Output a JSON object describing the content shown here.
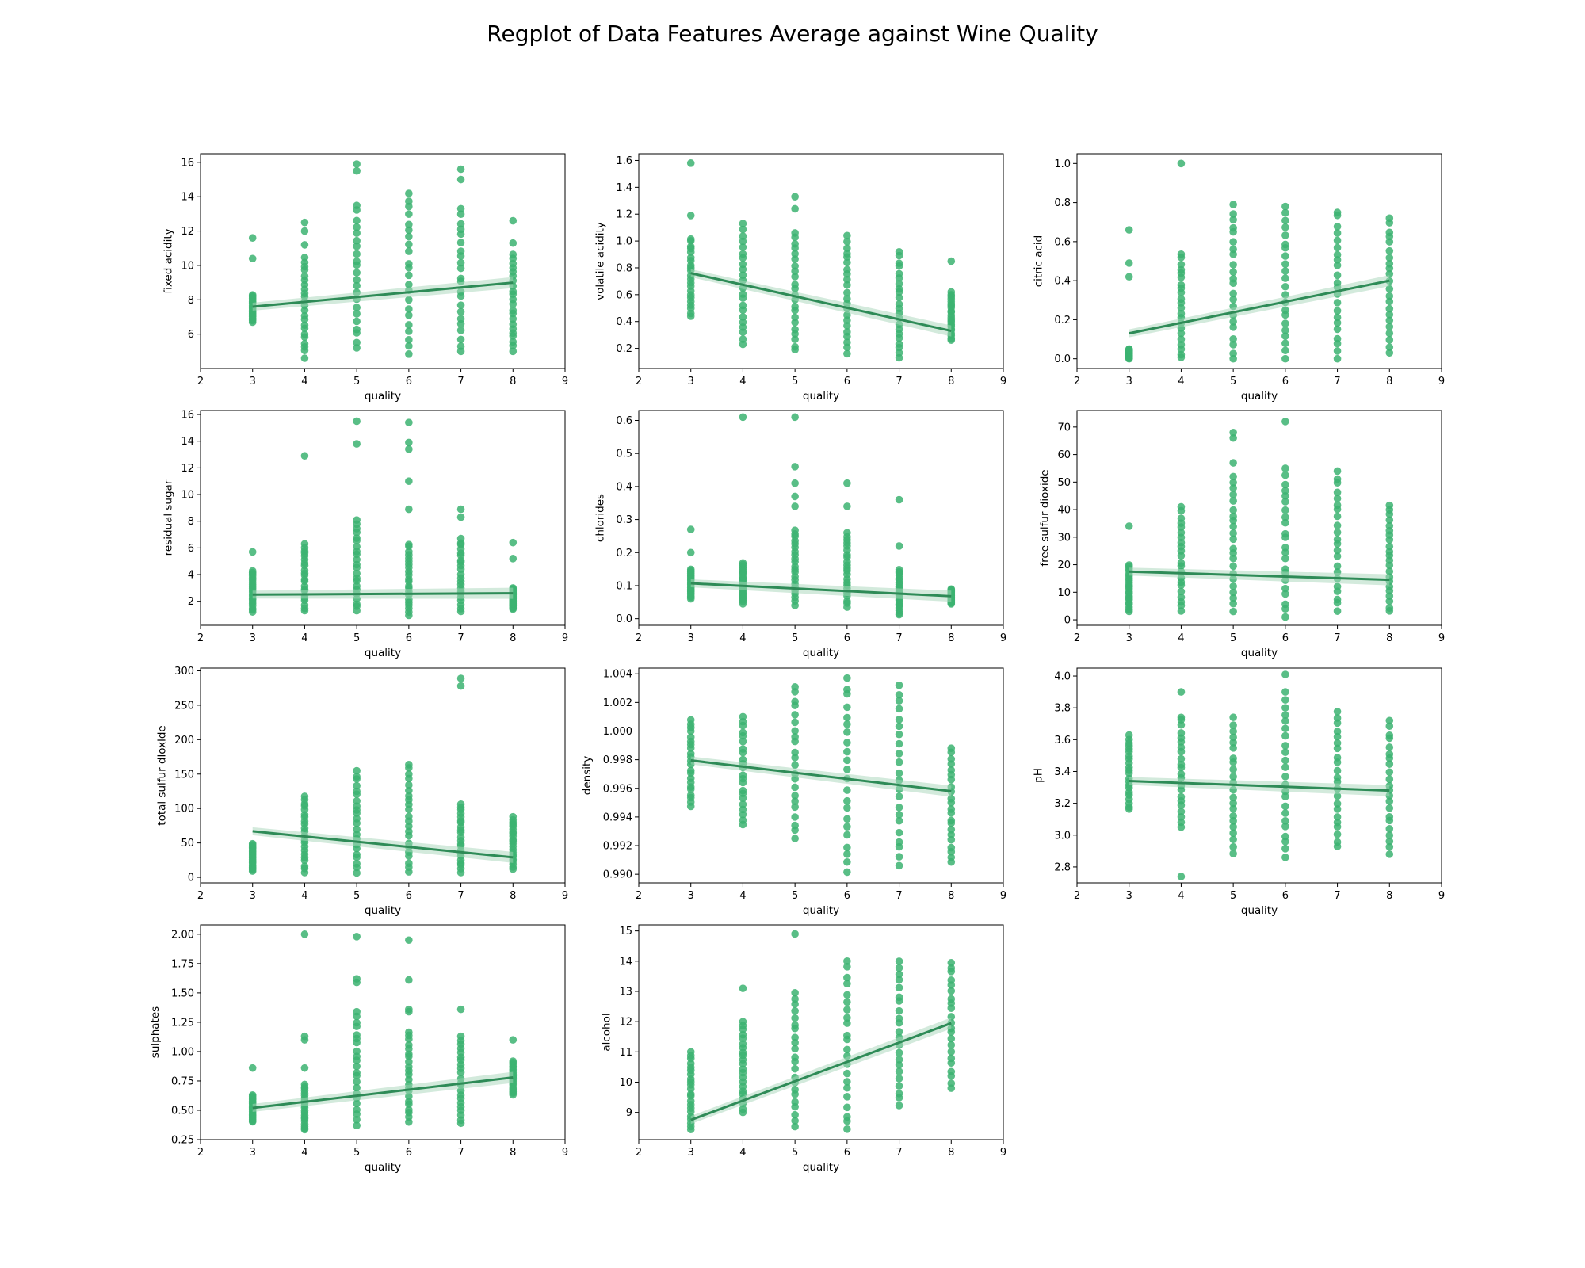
{
  "title": "Regplot of Data Features Average against Wine Quality",
  "colors": {
    "points": "#3cb371",
    "line": "#2e8b57",
    "ci": "#a8d5b9"
  },
  "chart_data": [
    {
      "type": "scatter",
      "xlabel": "quality",
      "ylabel": "fixed acidity",
      "xlim": [
        2,
        9
      ],
      "ylim": [
        4.0,
        16.5
      ],
      "xticks": [
        2,
        3,
        4,
        5,
        6,
        7,
        8,
        9
      ],
      "yticks": [
        6,
        8,
        10,
        12,
        14,
        16
      ],
      "ytick_labels": [
        "6",
        "8",
        "10",
        "12",
        "14",
        "16"
      ],
      "regression": {
        "x": [
          3,
          8
        ],
        "y": [
          7.6,
          9.0
        ]
      },
      "groups": [
        {
          "x": 3,
          "min": 6.7,
          "max": 8.3,
          "extra": [
            10.4,
            11.6
          ]
        },
        {
          "x": 4,
          "min": 5.0,
          "max": 10.5,
          "extra": [
            4.6,
            11.2,
            12.0,
            12.5
          ]
        },
        {
          "x": 5,
          "min": 5.2,
          "max": 13.5,
          "extra": [
            15.5,
            15.9
          ]
        },
        {
          "x": 6,
          "min": 4.8,
          "max": 14.3,
          "extra": []
        },
        {
          "x": 7,
          "min": 5.0,
          "max": 13.3,
          "extra": [
            15.0,
            15.6
          ]
        },
        {
          "x": 8,
          "min": 5.0,
          "max": 10.7,
          "extra": [
            11.3,
            12.6
          ]
        }
      ]
    },
    {
      "type": "scatter",
      "xlabel": "quality",
      "ylabel": "volatile acidity",
      "xlim": [
        2,
        9
      ],
      "ylim": [
        0.05,
        1.65
      ],
      "xticks": [
        2,
        3,
        4,
        5,
        6,
        7,
        8,
        9
      ],
      "yticks": [
        0.2,
        0.4,
        0.6,
        0.8,
        1.0,
        1.2,
        1.4,
        1.6
      ],
      "ytick_labels": [
        "0.2",
        "0.4",
        "0.6",
        "0.8",
        "1.0",
        "1.2",
        "1.4",
        "1.6"
      ],
      "regression": {
        "x": [
          3,
          8
        ],
        "y": [
          0.76,
          0.33
        ]
      },
      "groups": [
        {
          "x": 3,
          "min": 0.44,
          "max": 1.02,
          "extra": [
            1.19,
            1.58
          ]
        },
        {
          "x": 4,
          "min": 0.23,
          "max": 1.13,
          "extra": []
        },
        {
          "x": 5,
          "min": 0.18,
          "max": 1.07,
          "extra": [
            1.24,
            1.33
          ]
        },
        {
          "x": 6,
          "min": 0.16,
          "max": 1.04,
          "extra": []
        },
        {
          "x": 7,
          "min": 0.12,
          "max": 0.92,
          "extra": []
        },
        {
          "x": 8,
          "min": 0.26,
          "max": 0.62,
          "extra": [
            0.85
          ]
        }
      ]
    },
    {
      "type": "scatter",
      "xlabel": "quality",
      "ylabel": "citric acid",
      "xlim": [
        2,
        9
      ],
      "ylim": [
        -0.05,
        1.05
      ],
      "xticks": [
        2,
        3,
        4,
        5,
        6,
        7,
        8,
        9
      ],
      "yticks": [
        0.0,
        0.2,
        0.4,
        0.6,
        0.8,
        1.0
      ],
      "ytick_labels": [
        "0.0",
        "0.2",
        "0.4",
        "0.6",
        "0.8",
        "1.0"
      ],
      "regression": {
        "x": [
          3,
          8
        ],
        "y": [
          0.13,
          0.4
        ]
      },
      "groups": [
        {
          "x": 3,
          "min": 0.0,
          "max": 0.05,
          "extra": [
            0.42,
            0.49,
            0.66
          ]
        },
        {
          "x": 4,
          "min": 0.0,
          "max": 0.54,
          "extra": [
            1.0
          ]
        },
        {
          "x": 5,
          "min": 0.0,
          "max": 0.79,
          "extra": []
        },
        {
          "x": 6,
          "min": 0.0,
          "max": 0.78,
          "extra": []
        },
        {
          "x": 7,
          "min": 0.0,
          "max": 0.76,
          "extra": []
        },
        {
          "x": 8,
          "min": 0.03,
          "max": 0.72,
          "extra": []
        }
      ]
    },
    {
      "type": "scatter",
      "xlabel": "quality",
      "ylabel": "residual sugar",
      "xlim": [
        2,
        9
      ],
      "ylim": [
        0.2,
        16.3
      ],
      "xticks": [
        2,
        3,
        4,
        5,
        6,
        7,
        8,
        9
      ],
      "yticks": [
        2,
        4,
        6,
        8,
        10,
        12,
        14,
        16
      ],
      "ytick_labels": [
        "2",
        "4",
        "6",
        "8",
        "10",
        "12",
        "14",
        "16"
      ],
      "regression": {
        "x": [
          3,
          8
        ],
        "y": [
          2.5,
          2.6
        ]
      },
      "groups": [
        {
          "x": 3,
          "min": 1.2,
          "max": 4.3,
          "extra": [
            5.7
          ]
        },
        {
          "x": 4,
          "min": 1.3,
          "max": 6.3,
          "extra": [
            12.9
          ]
        },
        {
          "x": 5,
          "min": 1.2,
          "max": 8.1,
          "extra": [
            13.8,
            15.5
          ]
        },
        {
          "x": 6,
          "min": 0.9,
          "max": 6.3,
          "extra": [
            8.9,
            11.0,
            13.4,
            13.9,
            15.4
          ]
        },
        {
          "x": 7,
          "min": 1.2,
          "max": 6.7,
          "extra": [
            8.3,
            8.9
          ]
        },
        {
          "x": 8,
          "min": 1.4,
          "max": 3.0,
          "extra": [
            5.2,
            6.4
          ]
        }
      ]
    },
    {
      "type": "scatter",
      "xlabel": "quality",
      "ylabel": "chlorides",
      "xlim": [
        2,
        9
      ],
      "ylim": [
        -0.02,
        0.63
      ],
      "xticks": [
        2,
        3,
        4,
        5,
        6,
        7,
        8,
        9
      ],
      "yticks": [
        0.0,
        0.1,
        0.2,
        0.3,
        0.4,
        0.5,
        0.6
      ],
      "ytick_labels": [
        "0.0",
        "0.1",
        "0.2",
        "0.3",
        "0.4",
        "0.5",
        "0.6"
      ],
      "regression": {
        "x": [
          3,
          8
        ],
        "y": [
          0.107,
          0.068
        ]
      },
      "groups": [
        {
          "x": 3,
          "min": 0.06,
          "max": 0.15,
          "extra": [
            0.2,
            0.27
          ]
        },
        {
          "x": 4,
          "min": 0.045,
          "max": 0.17,
          "extra": [
            0.61
          ]
        },
        {
          "x": 5,
          "min": 0.04,
          "max": 0.27,
          "extra": [
            0.34,
            0.37,
            0.41,
            0.46,
            0.61
          ]
        },
        {
          "x": 6,
          "min": 0.035,
          "max": 0.26,
          "extra": [
            0.34,
            0.41
          ]
        },
        {
          "x": 7,
          "min": 0.012,
          "max": 0.15,
          "extra": [
            0.22,
            0.36
          ]
        },
        {
          "x": 8,
          "min": 0.045,
          "max": 0.09,
          "extra": []
        }
      ]
    },
    {
      "type": "scatter",
      "xlabel": "quality",
      "ylabel": "free sulfur dioxide",
      "xlim": [
        2,
        9
      ],
      "ylim": [
        -2,
        76
      ],
      "xticks": [
        2,
        3,
        4,
        5,
        6,
        7,
        8,
        9
      ],
      "yticks": [
        0,
        10,
        20,
        30,
        40,
        50,
        60,
        70
      ],
      "ytick_labels": [
        "0",
        "10",
        "20",
        "30",
        "40",
        "50",
        "60",
        "70"
      ],
      "regression": {
        "x": [
          3,
          8
        ],
        "y": [
          17.5,
          14.5
        ]
      },
      "groups": [
        {
          "x": 3,
          "min": 3,
          "max": 20,
          "extra": [
            34
          ]
        },
        {
          "x": 4,
          "min": 3,
          "max": 41,
          "extra": []
        },
        {
          "x": 5,
          "min": 3,
          "max": 52,
          "extra": [
            57,
            66,
            68
          ]
        },
        {
          "x": 6,
          "min": 1,
          "max": 55,
          "extra": [
            72
          ]
        },
        {
          "x": 7,
          "min": 3,
          "max": 54,
          "extra": []
        },
        {
          "x": 8,
          "min": 3,
          "max": 42,
          "extra": []
        }
      ]
    },
    {
      "type": "scatter",
      "xlabel": "quality",
      "ylabel": "total sulfur dioxide",
      "xlim": [
        2,
        9
      ],
      "ylim": [
        -8,
        304
      ],
      "xticks": [
        2,
        3,
        4,
        5,
        6,
        7,
        8,
        9
      ],
      "yticks": [
        0,
        50,
        100,
        150,
        200,
        250,
        300
      ],
      "ytick_labels": [
        "0",
        "50",
        "100",
        "150",
        "200",
        "250",
        "300"
      ],
      "regression": {
        "x": [
          3,
          8
        ],
        "y": [
          67,
          29
        ]
      },
      "groups": [
        {
          "x": 3,
          "min": 9,
          "max": 49,
          "extra": []
        },
        {
          "x": 4,
          "min": 7,
          "max": 119,
          "extra": []
        },
        {
          "x": 5,
          "min": 6,
          "max": 155,
          "extra": []
        },
        {
          "x": 6,
          "min": 6,
          "max": 165,
          "extra": []
        },
        {
          "x": 7,
          "min": 7,
          "max": 107,
          "extra": [
            278,
            289
          ]
        },
        {
          "x": 8,
          "min": 12,
          "max": 88,
          "extra": []
        }
      ]
    },
    {
      "type": "scatter",
      "xlabel": "quality",
      "ylabel": "density",
      "xlim": [
        2,
        9
      ],
      "ylim": [
        0.9894,
        1.0044
      ],
      "xticks": [
        2,
        3,
        4,
        5,
        6,
        7,
        8,
        9
      ],
      "yticks": [
        0.99,
        0.992,
        0.994,
        0.996,
        0.998,
        1.0,
        1.002,
        1.004
      ],
      "ytick_labels": [
        "0.990",
        "0.992",
        "0.994",
        "0.996",
        "0.998",
        "1.000",
        "1.002",
        "1.004"
      ],
      "regression": {
        "x": [
          3,
          8
        ],
        "y": [
          0.99795,
          0.9958
        ]
      },
      "groups": [
        {
          "x": 3,
          "min": 0.9947,
          "max": 1.0008,
          "extra": []
        },
        {
          "x": 4,
          "min": 0.9934,
          "max": 1.001,
          "extra": []
        },
        {
          "x": 5,
          "min": 0.9925,
          "max": 1.0032,
          "extra": []
        },
        {
          "x": 6,
          "min": 0.9901,
          "max": 1.0037,
          "extra": []
        },
        {
          "x": 7,
          "min": 0.9906,
          "max": 1.0032,
          "extra": []
        },
        {
          "x": 8,
          "min": 0.9908,
          "max": 0.9988,
          "extra": []
        }
      ]
    },
    {
      "type": "scatter",
      "xlabel": "quality",
      "ylabel": "pH",
      "xlim": [
        2,
        9
      ],
      "ylim": [
        2.7,
        4.05
      ],
      "xticks": [
        2,
        3,
        4,
        5,
        6,
        7,
        8,
        9
      ],
      "yticks": [
        2.8,
        3.0,
        3.2,
        3.4,
        3.6,
        3.8,
        4.0
      ],
      "ytick_labels": [
        "2.8",
        "3.0",
        "3.2",
        "3.4",
        "3.6",
        "3.8",
        "4.0"
      ],
      "regression": {
        "x": [
          3,
          8
        ],
        "y": [
          3.34,
          3.28
        ]
      },
      "groups": [
        {
          "x": 3,
          "min": 3.16,
          "max": 3.63,
          "extra": []
        },
        {
          "x": 4,
          "min": 3.05,
          "max": 3.75,
          "extra": [
            2.74,
            3.9
          ]
        },
        {
          "x": 5,
          "min": 2.88,
          "max": 3.74,
          "extra": []
        },
        {
          "x": 6,
          "min": 2.86,
          "max": 3.85,
          "extra": [
            3.9,
            4.01
          ]
        },
        {
          "x": 7,
          "min": 2.92,
          "max": 3.78,
          "extra": []
        },
        {
          "x": 8,
          "min": 2.88,
          "max": 3.72,
          "extra": []
        }
      ]
    },
    {
      "type": "scatter",
      "xlabel": "quality",
      "ylabel": "sulphates",
      "xlim": [
        2,
        9
      ],
      "ylim": [
        0.25,
        2.08
      ],
      "xticks": [
        2,
        3,
        4,
        5,
        6,
        7,
        8,
        9
      ],
      "yticks": [
        0.25,
        0.5,
        0.75,
        1.0,
        1.25,
        1.5,
        1.75,
        2.0
      ],
      "ytick_labels": [
        "0.25",
        "0.50",
        "0.75",
        "1.00",
        "1.25",
        "1.50",
        "1.75",
        "2.00"
      ],
      "regression": {
        "x": [
          3,
          8
        ],
        "y": [
          0.52,
          0.78
        ]
      },
      "groups": [
        {
          "x": 3,
          "min": 0.4,
          "max": 0.63,
          "extra": [
            0.86
          ]
        },
        {
          "x": 4,
          "min": 0.33,
          "max": 0.72,
          "extra": [
            0.86,
            1.1,
            1.13,
            2.0
          ]
        },
        {
          "x": 5,
          "min": 0.37,
          "max": 1.34,
          "extra": [
            1.59,
            1.62,
            1.98
          ]
        },
        {
          "x": 6,
          "min": 0.4,
          "max": 1.17,
          "extra": [
            1.34,
            1.36,
            1.61,
            1.95
          ]
        },
        {
          "x": 7,
          "min": 0.39,
          "max": 1.13,
          "extra": [
            1.36
          ]
        },
        {
          "x": 8,
          "min": 0.63,
          "max": 0.92,
          "extra": [
            1.1
          ]
        }
      ]
    },
    {
      "type": "scatter",
      "xlabel": "quality",
      "ylabel": "alcohol",
      "xlim": [
        2,
        9
      ],
      "ylim": [
        8.1,
        15.2
      ],
      "xticks": [
        2,
        3,
        4,
        5,
        6,
        7,
        8,
        9
      ],
      "yticks": [
        9,
        10,
        11,
        12,
        13,
        14,
        15
      ],
      "ytick_labels": [
        "9",
        "10",
        "11",
        "12",
        "13",
        "14",
        "15"
      ],
      "regression": {
        "x": [
          3,
          8
        ],
        "y": [
          8.75,
          11.95
        ]
      },
      "groups": [
        {
          "x": 3,
          "min": 8.4,
          "max": 11.0,
          "extra": []
        },
        {
          "x": 4,
          "min": 9.0,
          "max": 12.0,
          "extra": [
            13.1
          ]
        },
        {
          "x": 5,
          "min": 8.5,
          "max": 13.0,
          "extra": [
            14.9
          ]
        },
        {
          "x": 6,
          "min": 8.4,
          "max": 14.0,
          "extra": []
        },
        {
          "x": 7,
          "min": 9.2,
          "max": 14.0,
          "extra": []
        },
        {
          "x": 8,
          "min": 9.8,
          "max": 14.0,
          "extra": []
        }
      ]
    }
  ]
}
